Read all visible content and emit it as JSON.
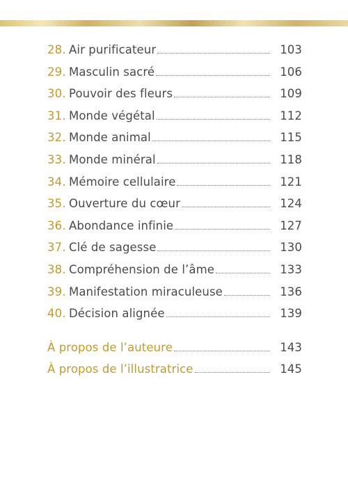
{
  "toc": {
    "entries": [
      {
        "number": "28.",
        "title": "Air purificateur",
        "page": 103
      },
      {
        "number": "29.",
        "title": "Masculin sacré",
        "page": 106
      },
      {
        "number": "30.",
        "title": "Pouvoir des fleurs",
        "page": 109
      },
      {
        "number": "31.",
        "title": "Monde végétal",
        "page": 112
      },
      {
        "number": "32.",
        "title": "Monde animal",
        "page": 115
      },
      {
        "number": "33.",
        "title": "Monde minéral",
        "page": 118
      },
      {
        "number": "34.",
        "title": "Mémoire cellulaire",
        "page": 121
      },
      {
        "number": "35.",
        "title": "Ouverture du cœur",
        "page": 124
      },
      {
        "number": "36.",
        "title": "Abondance infinie",
        "page": 127
      },
      {
        "number": "37.",
        "title": "Clé de sagesse",
        "page": 130
      },
      {
        "number": "38.",
        "title": "Compréhension de l’âme",
        "page": 133
      },
      {
        "number": "39.",
        "title": "Manifestation miraculeuse",
        "page": 136
      },
      {
        "number": "40.",
        "title": "Décision alignée",
        "page": 139
      }
    ],
    "appendix": [
      {
        "title": "À propos de l’auteure",
        "page": 143
      },
      {
        "title": "À propos de l’illustratrice",
        "page": 145
      }
    ]
  }
}
